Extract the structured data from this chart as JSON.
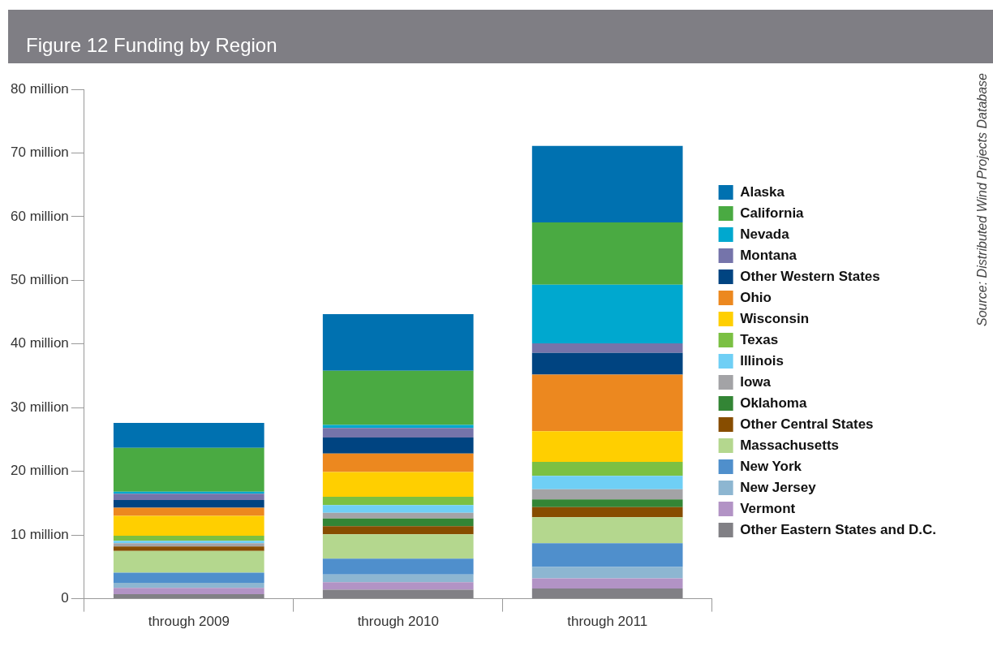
{
  "chart_data": {
    "type": "bar",
    "title": "Figure 12 Funding by Region",
    "stacked": true,
    "categories": [
      "through 2009",
      "through 2010",
      "through 2011"
    ],
    "ylim": [
      0,
      80
    ],
    "yticks": [
      0,
      {
        "value": 10,
        "label": "10 million"
      },
      {
        "value": 20,
        "label": "20 million"
      },
      {
        "value": 30,
        "label": "30 million"
      },
      {
        "value": 40,
        "label": "40 million"
      },
      {
        "value": 50,
        "label": "50 million"
      },
      {
        "value": 60,
        "label": "60 million"
      },
      {
        "value": 70,
        "label": "70 million"
      },
      {
        "value": 80,
        "label": "80 million"
      }
    ],
    "grid": false,
    "legend": "right",
    "annotations": [
      "Source: Distributed Wind Projects Database"
    ],
    "series": [
      {
        "name": "Other Eastern States and D.C.",
        "color": "#818085",
        "values": [
          0.7,
          1.4,
          1.6
        ]
      },
      {
        "name": "Vermont",
        "color": "#b293c5",
        "values": [
          1.0,
          1.2,
          1.6
        ]
      },
      {
        "name": "New Jersey",
        "color": "#8db6d1",
        "values": [
          0.8,
          1.2,
          1.8
        ]
      },
      {
        "name": "New York",
        "color": "#4f8fcc",
        "values": [
          1.6,
          2.5,
          3.7
        ]
      },
      {
        "name": "Massachusetts",
        "color": "#b4d78e",
        "values": [
          3.4,
          3.8,
          4.1
        ]
      },
      {
        "name": "Other Central States",
        "color": "#874d00",
        "values": [
          0.7,
          1.3,
          1.6
        ]
      },
      {
        "name": "Oklahoma",
        "color": "#338535",
        "values": [
          0,
          1.2,
          1.2
        ]
      },
      {
        "name": "Iowa",
        "color": "#a3a3a6",
        "values": [
          0.5,
          0.9,
          1.6
        ]
      },
      {
        "name": "Illinois",
        "color": "#6fcff5",
        "values": [
          0.4,
          1.2,
          2.1
        ]
      },
      {
        "name": "Texas",
        "color": "#7bc043",
        "values": [
          0.8,
          1.3,
          2.2
        ]
      },
      {
        "name": "Wisconsin",
        "color": "#ffcf00",
        "values": [
          3.1,
          3.9,
          4.8
        ]
      },
      {
        "name": "Ohio",
        "color": "#ec881f",
        "values": [
          1.3,
          2.9,
          8.9
        ]
      },
      {
        "name": "Other Western States",
        "color": "#004481",
        "values": [
          1.2,
          2.5,
          3.4
        ]
      },
      {
        "name": "Montana",
        "color": "#7574aa",
        "values": [
          1.0,
          1.5,
          1.5
        ]
      },
      {
        "name": "Nevada",
        "color": "#00a8cf",
        "values": [
          0.3,
          0.5,
          9.2
        ]
      },
      {
        "name": "California",
        "color": "#4aaa42",
        "values": [
          6.9,
          8.5,
          9.8
        ]
      },
      {
        "name": "Alaska",
        "color": "#0071b0",
        "values": [
          3.9,
          8.9,
          12.0
        ]
      }
    ]
  }
}
